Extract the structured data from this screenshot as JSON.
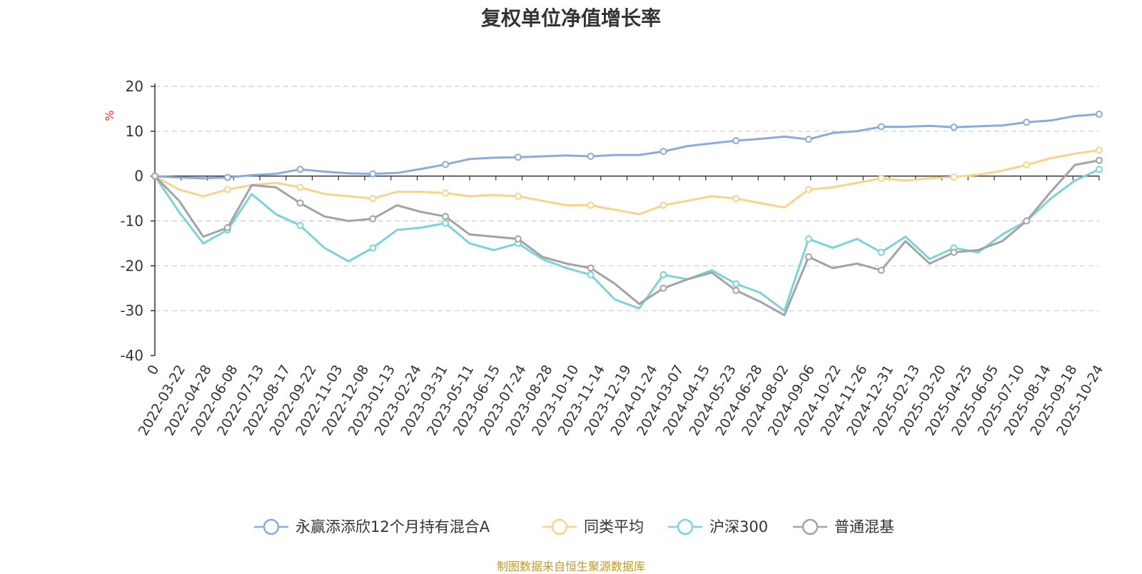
{
  "title": "复权单位净值增长率",
  "source": "制图数据来自恒生聚源数据库",
  "chart_data": {
    "type": "line",
    "title": "复权单位净值增长率",
    "ylabel": "%",
    "xlabel": "",
    "ylim": [
      -40,
      20
    ],
    "yticks": [
      20,
      10,
      0,
      -10,
      -20,
      -30,
      -40
    ],
    "grid": true,
    "legend_position": "bottom",
    "x_tick_labels": [
      "0",
      "2022-03-22",
      "2022-04-28",
      "2022-06-08",
      "2022-07-13",
      "2022-08-17",
      "2022-09-22",
      "2022-11-03",
      "2022-12-08",
      "2023-01-13",
      "2023-02-24",
      "2023-03-31",
      "2023-05-11",
      "2023-06-15",
      "2023-07-24",
      "2023-08-28",
      "2023-10-10",
      "2023-11-14",
      "2023-12-19",
      "2024-01-24",
      "2024-03-07",
      "2024-04-15",
      "2024-05-23",
      "2024-06-28",
      "2024-08-02",
      "2024-09-06",
      "2024-10-22",
      "2024-11-26",
      "2024-12-31",
      "2025-02-13",
      "2025-03-20",
      "2025-04-25",
      "2025-06-05",
      "2025-07-10",
      "2025-08-14",
      "2025-09-18",
      "2025-10-24"
    ],
    "series": [
      {
        "name": "永赢添添欣12个月持有混合A",
        "color": "#8eaadb",
        "values": [
          0,
          -0.3,
          -0.5,
          -0.3,
          0.2,
          0.5,
          1.5,
          1.0,
          0.6,
          0.5,
          0.7,
          1.6,
          2.6,
          3.8,
          4.1,
          4.2,
          4.4,
          4.6,
          4.4,
          4.7,
          4.7,
          5.5,
          6.7,
          7.3,
          7.9,
          8.3,
          8.8,
          8.2,
          9.6,
          10.0,
          11.0,
          11.0,
          11.2,
          10.9,
          11.1,
          11.3,
          12.0,
          12.4,
          13.4,
          13.8
        ]
      },
      {
        "name": "同类平均",
        "color": "#f8d48b",
        "values": [
          0,
          -3.0,
          -4.5,
          -3.0,
          -2.0,
          -1.5,
          -2.5,
          -4.0,
          -4.5,
          -5.0,
          -3.5,
          -3.5,
          -3.8,
          -4.5,
          -4.2,
          -4.5,
          -5.5,
          -6.5,
          -6.5,
          -7.5,
          -8.5,
          -6.5,
          -5.5,
          -4.5,
          -5.0,
          -6.0,
          -7.0,
          -3.0,
          -2.5,
          -1.5,
          -0.5,
          -1.0,
          -0.5,
          -0.2,
          0.3,
          1.2,
          2.5,
          4.0,
          5.0,
          5.8
        ]
      },
      {
        "name": "沪深300",
        "color": "#7dd3d8",
        "values": [
          0,
          -8.0,
          -15.0,
          -12.0,
          -4.0,
          -8.5,
          -11.0,
          -16.0,
          -19.0,
          -16.0,
          -12.0,
          -11.5,
          -10.5,
          -15.0,
          -16.5,
          -15.0,
          -18.5,
          -20.5,
          -22.0,
          -27.5,
          -29.5,
          -22.0,
          -23.0,
          -21.0,
          -24.0,
          -26.0,
          -30.0,
          -14.0,
          -16.0,
          -14.0,
          -17.0,
          -13.5,
          -18.5,
          -16.0,
          -17.0,
          -13.0,
          -10.0,
          -5.0,
          -1.0,
          1.5
        ]
      },
      {
        "name": "普通混基",
        "color": "#a3a3a3",
        "values": [
          0,
          -5.5,
          -13.5,
          -11.5,
          -2.0,
          -2.5,
          -6.0,
          -9.0,
          -10.0,
          -9.5,
          -6.5,
          -8.0,
          -9.0,
          -13.0,
          -13.5,
          -14.0,
          -18.0,
          -19.5,
          -20.5,
          -24.0,
          -28.5,
          -25.0,
          -23.0,
          -21.5,
          -25.5,
          -28.0,
          -31.0,
          -18.0,
          -20.5,
          -19.5,
          -21.0,
          -14.5,
          -19.5,
          -17.0,
          -16.5,
          -14.5,
          -10.0,
          -3.5,
          2.5,
          3.5
        ]
      }
    ]
  }
}
